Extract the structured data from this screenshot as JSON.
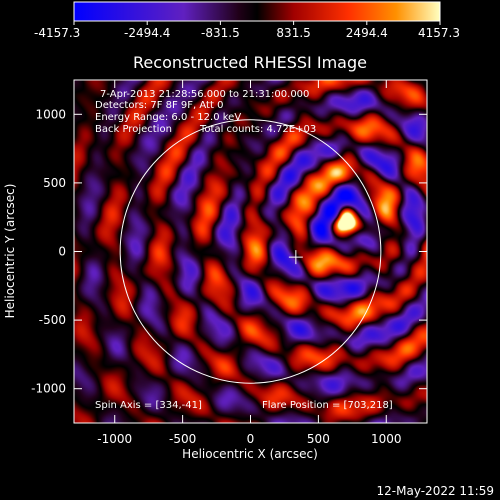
{
  "chart_data": {
    "type": "heatmap",
    "title": "Reconstructed RHESSI Image",
    "xlabel": "Heliocentric X (arcsec)",
    "ylabel": "Heliocentric Y (arcsec)",
    "xlim": [
      -1300,
      1300
    ],
    "ylim": [
      -1250,
      1250
    ],
    "x_ticks": [
      -1000,
      -500,
      0,
      500,
      1000
    ],
    "y_ticks": [
      -1000,
      -500,
      0,
      500,
      1000
    ],
    "colorbar": {
      "min": -4157.3,
      "max": 4157.3,
      "tick_values": [
        -4157.3,
        -2494.4,
        -831.5,
        831.5,
        2494.4,
        4157.3
      ],
      "tick_labels": [
        "-4157.3",
        "-2494.4",
        "-831.5",
        "831.5",
        "2494.4",
        "4157.3"
      ]
    },
    "solar_disk_radius_arcsec": 960,
    "source_peak": {
      "x": 703,
      "y": 218
    },
    "cross_marker": {
      "x": 334,
      "y": -41
    },
    "annotations": {
      "time_range": "7-Apr-2013 21:28:56.000 to 21:31:00.000",
      "detectors": "Detectors: 7F 8F 9F, Att 0",
      "energy": "Energy Range: 6.0 - 12.0 keV",
      "method": "Back Projection",
      "total_counts": "Total counts: 4.72E+03",
      "spin_axis": "Spin Axis = [334,-41]",
      "flare_position": "Flare Position = [703,218]"
    },
    "grid": false
  },
  "footer": {
    "date": "12-May-2022 11:59"
  },
  "colors": {
    "background": "#000000",
    "positive_peak": "#ffff80",
    "negative_peak": "#1010ff",
    "circle": "#ffffff"
  }
}
